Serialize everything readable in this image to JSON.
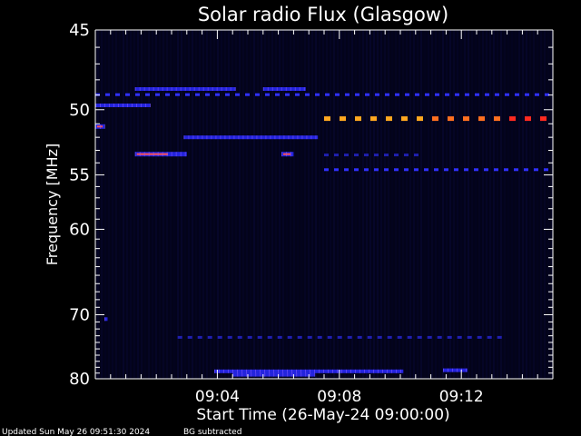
{
  "chart_data": {
    "type": "heatmap",
    "title": "Solar radio Flux (Glasgow)",
    "xlabel": "Start Time (26-May-24 09:00:00)",
    "ylabel": "Frequency [MHz]",
    "xlim_minutes": [
      0,
      15
    ],
    "ylim": [
      45,
      80
    ],
    "x_ticks": [
      {
        "minute": 4,
        "label": "09:04"
      },
      {
        "minute": 8,
        "label": "09:08"
      },
      {
        "minute": 12,
        "label": "09:12"
      }
    ],
    "y_ticks": [
      {
        "value": 45,
        "label": "45"
      },
      {
        "value": 50,
        "label": "50"
      },
      {
        "value": 55,
        "label": "55"
      },
      {
        "value": 60,
        "label": "60"
      },
      {
        "value": 70,
        "label": "70"
      },
      {
        "value": 80,
        "label": "80"
      }
    ],
    "y_scale": "reciprocal",
    "grid": false,
    "footer": {
      "updated": "Updated Sun May 26 09:51:30 2024",
      "note": "BG subtracted"
    },
    "features": [
      {
        "type": "dashes",
        "freq": 50.6,
        "t_start": 7.5,
        "t_end": 15.0,
        "intensity": "high"
      },
      {
        "type": "dashes",
        "freq": 49.0,
        "t_start": 0.0,
        "t_end": 15.0,
        "intensity": "medium"
      },
      {
        "type": "band",
        "freq": 48.6,
        "t_start": 1.3,
        "t_end": 4.6,
        "intensity": "medium"
      },
      {
        "type": "band",
        "freq": 48.6,
        "t_start": 5.5,
        "t_end": 6.9,
        "intensity": "medium"
      },
      {
        "type": "band",
        "freq": 49.7,
        "t_start": 0.0,
        "t_end": 1.8,
        "intensity": "medium"
      },
      {
        "type": "band",
        "freq": 52.0,
        "t_start": 2.9,
        "t_end": 7.3,
        "intensity": "medium"
      },
      {
        "type": "band",
        "freq": 53.3,
        "t_start": 1.3,
        "t_end": 3.0,
        "intensity": "high"
      },
      {
        "type": "band",
        "freq": 53.3,
        "t_start": 6.1,
        "t_end": 6.5,
        "intensity": "high"
      },
      {
        "type": "dashes",
        "freq": 53.4,
        "t_start": 7.5,
        "t_end": 10.5,
        "intensity": "low"
      },
      {
        "type": "dashes",
        "freq": 54.6,
        "t_start": 7.5,
        "t_end": 15.0,
        "intensity": "medium"
      },
      {
        "type": "dashes",
        "freq": 73.3,
        "t_start": 2.7,
        "t_end": 13.3,
        "intensity": "low"
      },
      {
        "type": "band",
        "freq": 78.7,
        "t_start": 3.9,
        "t_end": 10.1,
        "intensity": "medium"
      },
      {
        "type": "band",
        "freq": 79.3,
        "t_start": 4.5,
        "t_end": 7.2,
        "intensity": "medium"
      },
      {
        "type": "band",
        "freq": 78.5,
        "t_start": 11.4,
        "t_end": 12.2,
        "intensity": "medium"
      },
      {
        "type": "band",
        "freq": 51.2,
        "t_start": 0.0,
        "t_end": 0.3,
        "intensity": "high"
      },
      {
        "type": "band",
        "freq": 70.6,
        "t_start": 0.3,
        "t_end": 0.4,
        "intensity": "medium"
      }
    ]
  }
}
